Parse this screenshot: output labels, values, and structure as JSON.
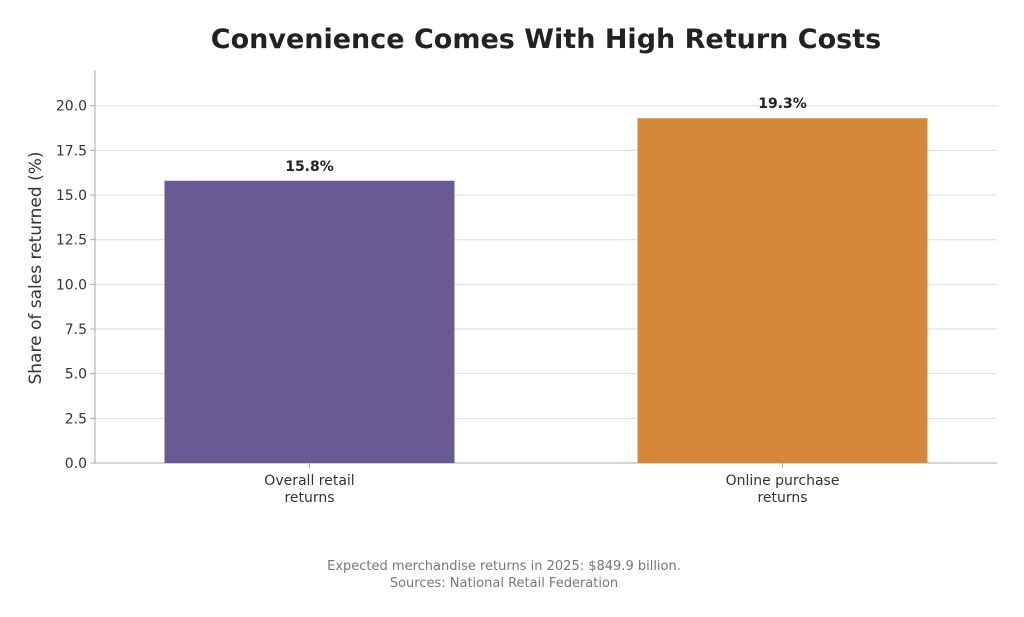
{
  "chart_data": {
    "type": "bar",
    "title": "Convenience Comes With High Return Costs",
    "ylabel": "Share of sales returned (%)",
    "xlabel": "",
    "categories": [
      [
        "Overall retail",
        "returns"
      ],
      [
        "Online purchase",
        "returns"
      ]
    ],
    "values": [
      15.8,
      19.3
    ],
    "data_labels": [
      "15.8%",
      "19.3%"
    ],
    "colors": [
      "#6a5a93",
      "#d6883a"
    ],
    "ylim": [
      0,
      22
    ],
    "yticks": [
      0,
      2.5,
      5,
      7.5,
      10,
      12.5,
      15,
      17.5,
      20
    ],
    "ytick_labels": [
      "0.0",
      "2.5",
      "5.0",
      "7.5",
      "10.0",
      "12.5",
      "15.0",
      "17.5",
      "20.0"
    ],
    "grid": true,
    "footnote": [
      "Expected merchandise returns in 2025: $849.9 billion.",
      "Sources: National Retail Federation"
    ]
  }
}
